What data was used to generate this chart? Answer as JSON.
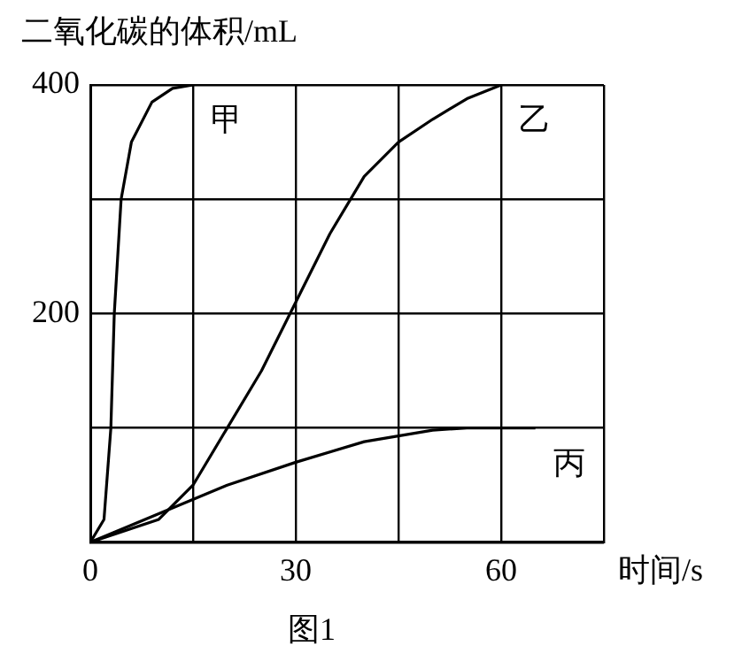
{
  "chart_data": {
    "type": "line",
    "title": "图1",
    "xlabel": "时间/s",
    "ylabel": "二氧化碳的体积/mL",
    "xlim": [
      0,
      75
    ],
    "xticks": [
      0,
      {
        "value": 15,
        "label": null
      },
      30,
      {
        "value": 45,
        "label": null
      },
      60,
      {
        "value": 75,
        "label": null
      }
    ],
    "ylim": [
      0,
      400
    ],
    "yticks": [
      {
        "value": 0,
        "label": null
      },
      {
        "value": 100,
        "label": null
      },
      200,
      {
        "value": 300,
        "label": null
      },
      400
    ],
    "grid": true,
    "legend": false,
    "marker": "none",
    "line_style": "solid",
    "series": [
      {
        "name": "甲",
        "color": "#000000",
        "x": [
          0,
          2,
          3,
          3.5,
          4.5,
          6,
          9,
          12,
          15
        ],
        "values": [
          0,
          20,
          100,
          200,
          300,
          350,
          385,
          397,
          400
        ]
      },
      {
        "name": "乙",
        "color": "#000000",
        "x": [
          0,
          10,
          15,
          20,
          25,
          30,
          35,
          40,
          45,
          50,
          55,
          60
        ],
        "values": [
          0,
          20,
          50,
          100,
          150,
          210,
          270,
          320,
          350,
          370,
          388,
          400
        ]
      },
      {
        "name": "丙",
        "color": "#000000",
        "x": [
          0,
          10,
          20,
          30,
          40,
          50,
          55,
          65
        ],
        "values": [
          0,
          25,
          50,
          70,
          88,
          98,
          100,
          100
        ]
      }
    ]
  }
}
